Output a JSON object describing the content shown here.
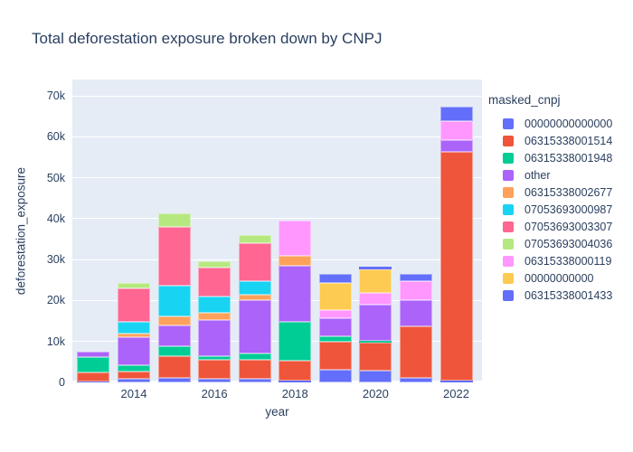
{
  "figure": {
    "background": "#ffffff",
    "plot_background": "#E5ECF6",
    "grid_color": "#ffffff",
    "font_color": "#2a3f5f"
  },
  "chart_data": {
    "type": "bar",
    "stacked": true,
    "title": "Total deforestation exposure broken down by CNPJ",
    "xlabel": "year",
    "ylabel": "deforestation_exposure",
    "legend_title": "masked_cnpj",
    "legend_position": "right",
    "grid": true,
    "ylim": [
      0,
      70000
    ],
    "yticks": [
      {
        "value": 0,
        "label": "0"
      },
      {
        "value": 10000,
        "label": "10k"
      },
      {
        "value": 20000,
        "label": "20k"
      },
      {
        "value": 30000,
        "label": "30k"
      },
      {
        "value": 40000,
        "label": "40k"
      },
      {
        "value": 50000,
        "label": "50k"
      },
      {
        "value": 60000,
        "label": "60k"
      },
      {
        "value": 70000,
        "label": "70k"
      }
    ],
    "x": [
      2013,
      2014,
      2015,
      2016,
      2017,
      2018,
      2019,
      2020,
      2021,
      2022
    ],
    "xticks": [
      {
        "x": 2014,
        "label": "2014"
      },
      {
        "x": 2016,
        "label": "2016"
      },
      {
        "x": 2018,
        "label": "2018"
      },
      {
        "x": 2020,
        "label": "2020"
      },
      {
        "x": 2022,
        "label": "2022"
      }
    ],
    "series": [
      {
        "name": "00000000000000",
        "color": "#636EFA",
        "values": [
          300,
          800,
          1000,
          800,
          900,
          500,
          3200,
          2900,
          1200,
          400
        ]
      },
      {
        "name": "06315338001514",
        "color": "#EF553B",
        "values": [
          2200,
          1900,
          5500,
          4700,
          4600,
          4800,
          6800,
          6900,
          12400,
          56000
        ]
      },
      {
        "name": "06315338001948",
        "color": "#00CC96",
        "values": [
          3600,
          1500,
          2300,
          800,
          1500,
          9600,
          1200,
          400,
          0,
          0
        ]
      },
      {
        "name": "other",
        "color": "#AB63FA",
        "values": [
          1500,
          6800,
          5200,
          9000,
          13200,
          13600,
          4400,
          8800,
          6600,
          2800
        ]
      },
      {
        "name": "06315338002677",
        "color": "#FFA15A",
        "values": [
          0,
          1000,
          2200,
          1800,
          1300,
          2400,
          0,
          0,
          0,
          0
        ]
      },
      {
        "name": "07053693000987",
        "color": "#19D3F3",
        "values": [
          0,
          2700,
          7400,
          3900,
          3200,
          0,
          0,
          0,
          0,
          0
        ]
      },
      {
        "name": "07053693003307",
        "color": "#FF6692",
        "values": [
          0,
          8300,
          14300,
          7000,
          9300,
          0,
          0,
          0,
          0,
          0
        ]
      },
      {
        "name": "07053693004036",
        "color": "#B6E880",
        "values": [
          0,
          1200,
          3500,
          1700,
          2000,
          0,
          0,
          0,
          0,
          0
        ]
      },
      {
        "name": "06315338000119",
        "color": "#FF97FF",
        "values": [
          0,
          0,
          0,
          0,
          0,
          8700,
          2100,
          2800,
          4500,
          4600
        ]
      },
      {
        "name": "00000000000",
        "color": "#FECB52",
        "values": [
          0,
          0,
          0,
          0,
          0,
          0,
          6600,
          5900,
          0,
          0
        ]
      },
      {
        "name": "06315338001433",
        "color": "#636EFA",
        "values": [
          0,
          0,
          0,
          0,
          0,
          0,
          2100,
          600,
          1900,
          3600
        ]
      }
    ]
  }
}
